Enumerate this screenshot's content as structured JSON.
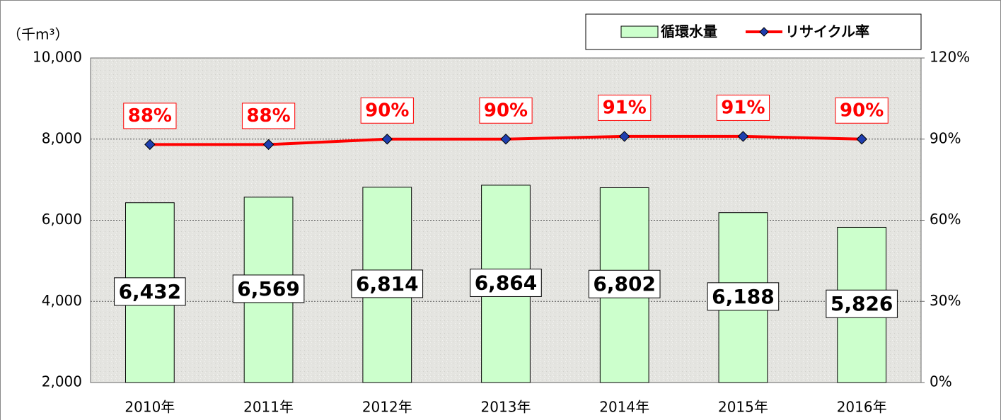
{
  "chart_data": {
    "type": "combo",
    "y_label": "（千m³）",
    "categories": [
      "2010年",
      "2011年",
      "2012年",
      "2013年",
      "2014年",
      "2015年",
      "2016年"
    ],
    "series": [
      {
        "name": "循環水量",
        "type": "bar",
        "color": "#ccffcc",
        "values": [
          6432,
          6569,
          6814,
          6864,
          6802,
          6188,
          5826
        ],
        "value_labels": [
          "6,432",
          "6,569",
          "6,814",
          "6,864",
          "6,802",
          "6,188",
          "5,826"
        ]
      },
      {
        "name": "リサイクル率",
        "type": "line",
        "axis": "y2",
        "color": "#ff0000",
        "values": [
          88,
          88,
          90,
          90,
          91,
          91,
          90
        ],
        "value_labels": [
          "88%",
          "88%",
          "90%",
          "90%",
          "91%",
          "91%",
          "90%"
        ]
      }
    ],
    "ylim": [
      2000,
      10000
    ],
    "yticks": [
      {
        "value": 2000,
        "label": "2,000"
      },
      {
        "value": 4000,
        "label": "4,000"
      },
      {
        "value": 6000,
        "label": "6,000"
      },
      {
        "value": 8000,
        "label": "8,000"
      },
      {
        "value": 10000,
        "label": "10,000"
      }
    ],
    "y2lim": [
      0,
      120
    ],
    "y2ticks": [
      {
        "value": 0,
        "label": "0%"
      },
      {
        "value": 30,
        "label": "30%"
      },
      {
        "value": 60,
        "label": "60%"
      },
      {
        "value": 90,
        "label": "90%"
      },
      {
        "value": 120,
        "label": "120%"
      }
    ],
    "grid": true,
    "legend": "top-right"
  }
}
